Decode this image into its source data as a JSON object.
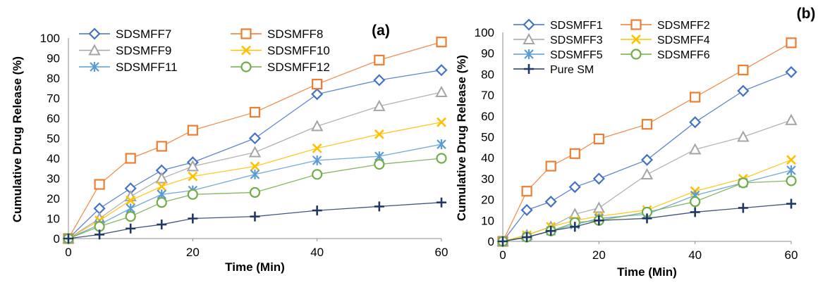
{
  "chart_data": [
    {
      "type": "line",
      "panel_label": "(a)",
      "xlabel": "Time (Min)",
      "ylabel": "Cumulative Drug Release (%)",
      "x": [
        0,
        5,
        10,
        15,
        20,
        30,
        40,
        50,
        60
      ],
      "xlim": [
        0,
        60
      ],
      "xticks": [
        "0",
        "20",
        "40",
        "60"
      ],
      "ylim": [
        0,
        100
      ],
      "yticks": [
        "0",
        "10",
        "20",
        "30",
        "40",
        "50",
        "60",
        "70",
        "80",
        "90",
        "100"
      ],
      "grid": false,
      "legend": "top-left",
      "series": [
        {
          "name": "SDSMFF7",
          "marker": "diamond",
          "color": "#4472C4",
          "values": [
            0,
            15,
            25,
            34,
            38,
            50,
            72,
            79,
            84
          ]
        },
        {
          "name": "SDSMFF8",
          "marker": "square",
          "color": "#ED7D31",
          "values": [
            0,
            27,
            40,
            46,
            54,
            63,
            77,
            89,
            98
          ]
        },
        {
          "name": "SDSMFF9",
          "marker": "triangle",
          "color": "#A5A5A5",
          "values": [
            0,
            10,
            21,
            30,
            36,
            43,
            56,
            66,
            73
          ]
        },
        {
          "name": "SDSMFF10",
          "marker": "x",
          "color": "#FFC000",
          "values": [
            0,
            9,
            19,
            26,
            31,
            36,
            45,
            52,
            58
          ]
        },
        {
          "name": "SDSMFF11",
          "marker": "star",
          "color": "#5B9BD5",
          "values": [
            0,
            7,
            15,
            22,
            24,
            32,
            39,
            41,
            47
          ]
        },
        {
          "name": "SDSMFF12",
          "marker": "circle",
          "color": "#70AD47",
          "values": [
            0,
            6,
            11,
            18,
            22,
            23,
            32,
            37,
            40
          ]
        },
        {
          "name": "",
          "marker": "plus",
          "color": "#203864",
          "values": [
            0,
            2,
            5,
            7,
            10,
            11,
            14,
            16,
            18
          ],
          "in_legend": false
        }
      ]
    },
    {
      "type": "line",
      "panel_label": "(b)",
      "xlabel": "Time (Min)",
      "ylabel": "Cumulative Drug Release (%)",
      "x": [
        0,
        5,
        10,
        15,
        20,
        30,
        40,
        50,
        60
      ],
      "xlim": [
        0,
        60
      ],
      "xticks": [
        "0",
        "20",
        "40",
        "60"
      ],
      "ylim": [
        0,
        100
      ],
      "yticks": [
        "0",
        "10",
        "20",
        "30",
        "40",
        "50",
        "60",
        "70",
        "80",
        "90",
        "100"
      ],
      "grid": false,
      "legend": "top-left",
      "series": [
        {
          "name": "SDSMFF1",
          "marker": "diamond",
          "color": "#4472C4",
          "values": [
            0,
            15,
            19,
            26,
            30,
            39,
            57,
            72,
            81
          ]
        },
        {
          "name": "SDSMFF2",
          "marker": "square",
          "color": "#ED7D31",
          "values": [
            0,
            24,
            36,
            42,
            49,
            56,
            69,
            82,
            95
          ]
        },
        {
          "name": "SDSMFF3",
          "marker": "triangle",
          "color": "#A5A5A5",
          "values": [
            0,
            3,
            7,
            13,
            16,
            32,
            44,
            50,
            58
          ]
        },
        {
          "name": "SDSMFF4",
          "marker": "x",
          "color": "#FFC000",
          "values": [
            0,
            3,
            7,
            10,
            12,
            15,
            24,
            30,
            39
          ]
        },
        {
          "name": "SDSMFF5",
          "marker": "star",
          "color": "#5B9BD5",
          "values": [
            0,
            2,
            5,
            8,
            11,
            13,
            22,
            28,
            34
          ]
        },
        {
          "name": "SDSMFF6",
          "marker": "circle",
          "color": "#70AD47",
          "values": [
            0,
            2,
            5,
            9,
            10,
            14,
            19,
            28,
            29
          ]
        },
        {
          "name": "Pure SM",
          "marker": "plus",
          "color": "#203864",
          "values": [
            0,
            2,
            5,
            7,
            10,
            11,
            14,
            16,
            18
          ]
        }
      ]
    }
  ]
}
